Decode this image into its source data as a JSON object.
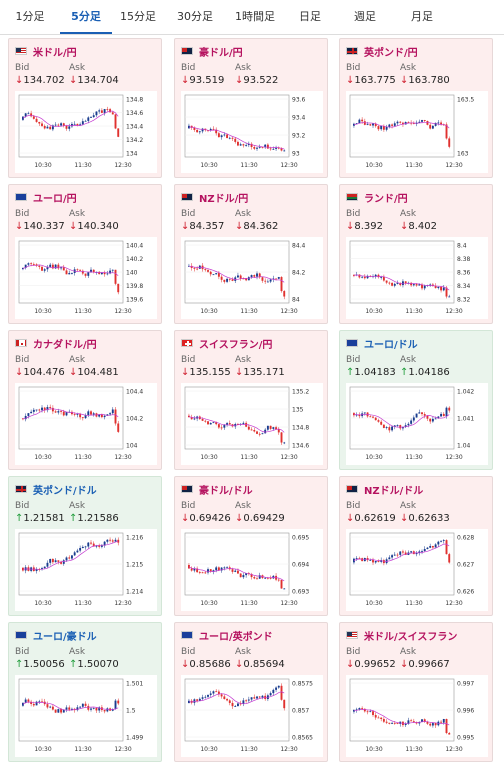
{
  "tabs": [
    {
      "label": "1分足",
      "active": false
    },
    {
      "label": "5分足",
      "active": true
    },
    {
      "label": "15分足",
      "active": false
    },
    {
      "label": "30分足",
      "active": false
    },
    {
      "label": "1時間足",
      "active": false
    },
    {
      "label": "日足",
      "active": false
    },
    {
      "label": "週足",
      "active": false
    },
    {
      "label": "月足",
      "active": false
    }
  ],
  "labels": {
    "bid": "Bid",
    "ask": "Ask"
  },
  "colors": {
    "down_bg": "#fdeeee",
    "up_bg": "#eaf4ec",
    "down_arrow": "#d01f2f",
    "up_arrow": "#1f9c3a",
    "candle_up": "#1a3d8f",
    "candle_down": "#e0312f",
    "ma_line": "#c43bd0"
  },
  "x_ticks": [
    "10:30",
    "11:30",
    "12:30"
  ],
  "cards": [
    {
      "pair": "米ドル/円",
      "flag": "us",
      "trend": "down",
      "bid": "134.702",
      "ask": "134.704",
      "y_ticks": [
        "134.8",
        "134.6",
        "134.4",
        "134.2",
        "134"
      ],
      "arrow_bid": "↓",
      "arrow_ask": "↓"
    },
    {
      "pair": "豪ドル/円",
      "flag": "au",
      "trend": "down",
      "bid": "93.519",
      "ask": "93.522",
      "y_ticks": [
        "93.6",
        "93.4",
        "93.2",
        "93"
      ],
      "arrow_bid": "↓",
      "arrow_ask": "↓"
    },
    {
      "pair": "英ポンド/円",
      "flag": "gb",
      "trend": "down",
      "bid": "163.775",
      "ask": "163.780",
      "y_ticks": [
        "163.5",
        "163"
      ],
      "arrow_bid": "↓",
      "arrow_ask": "↓"
    },
    {
      "pair": "ユーロ/円",
      "flag": "eu",
      "trend": "down",
      "bid": "140.337",
      "ask": "140.340",
      "y_ticks": [
        "140.4",
        "140.2",
        "140",
        "139.8",
        "139.6"
      ],
      "arrow_bid": "↓",
      "arrow_ask": "↓"
    },
    {
      "pair": "NZドル/円",
      "flag": "nz",
      "trend": "down",
      "bid": "84.357",
      "ask": "84.362",
      "y_ticks": [
        "84.4",
        "84.2",
        "84"
      ],
      "arrow_bid": "↓",
      "arrow_ask": "↓"
    },
    {
      "pair": "ランド/円",
      "flag": "za",
      "trend": "down",
      "bid": "8.392",
      "ask": "8.402",
      "y_ticks": [
        "8.4",
        "8.38",
        "8.36",
        "8.34",
        "8.32"
      ],
      "arrow_bid": "↓",
      "arrow_ask": "↓"
    },
    {
      "pair": "カナダドル/円",
      "flag": "ca",
      "trend": "down",
      "bid": "104.476",
      "ask": "104.481",
      "y_ticks": [
        "104.4",
        "104.2",
        "104"
      ],
      "arrow_bid": "↓",
      "arrow_ask": "↓"
    },
    {
      "pair": "スイスフラン/円",
      "flag": "ch",
      "trend": "down",
      "bid": "135.155",
      "ask": "135.171",
      "y_ticks": [
        "135.2",
        "135",
        "134.8",
        "134.6"
      ],
      "arrow_bid": "↓",
      "arrow_ask": "↓"
    },
    {
      "pair": "ユーロ/ドル",
      "flag": "eu",
      "trend": "up",
      "bid": "1.04183",
      "ask": "1.04186",
      "y_ticks": [
        "1.042",
        "1.041",
        "1.04"
      ],
      "arrow_bid": "↑",
      "arrow_ask": "↑"
    },
    {
      "pair": "英ポンド/ドル",
      "flag": "gb",
      "trend": "up",
      "bid": "1.21581",
      "ask": "1.21586",
      "y_ticks": [
        "1.216",
        "1.215",
        "1.214"
      ],
      "arrow_bid": "↑",
      "arrow_ask": "↑"
    },
    {
      "pair": "豪ドル/ドル",
      "flag": "au",
      "trend": "down",
      "bid": "0.69426",
      "ask": "0.69429",
      "y_ticks": [
        "0.695",
        "0.694",
        "0.693"
      ],
      "arrow_bid": "↓",
      "arrow_ask": "↓"
    },
    {
      "pair": "NZドル/ドル",
      "flag": "nz",
      "trend": "down",
      "bid": "0.62619",
      "ask": "0.62633",
      "y_ticks": [
        "0.628",
        "0.627",
        "0.626"
      ],
      "arrow_bid": "↓",
      "arrow_ask": "↓"
    },
    {
      "pair": "ユーロ/豪ドル",
      "flag": "eu",
      "trend": "up",
      "bid": "1.50056",
      "ask": "1.50070",
      "y_ticks": [
        "1.501",
        "1.5",
        "1.499"
      ],
      "arrow_bid": "↑",
      "arrow_ask": "↑"
    },
    {
      "pair": "ユーロ/英ポンド",
      "flag": "eu",
      "trend": "down",
      "bid": "0.85686",
      "ask": "0.85694",
      "y_ticks": [
        "0.8575",
        "0.857",
        "0.8565"
      ],
      "arrow_bid": "↓",
      "arrow_ask": "↓"
    },
    {
      "pair": "米ドル/スイスフラン",
      "flag": "us",
      "trend": "down",
      "bid": "0.99652",
      "ask": "0.99667",
      "y_ticks": [
        "0.997",
        "0.996",
        "0.995"
      ],
      "arrow_bid": "↓",
      "arrow_ask": "↓"
    }
  ]
}
